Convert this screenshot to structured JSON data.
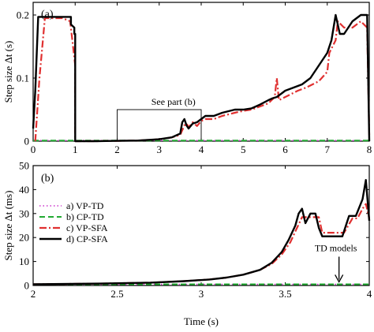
{
  "chart_data": [
    {
      "type": "line",
      "panel_label": "(a)",
      "xlabel": "",
      "ylabel": "Step size  Δt (s)",
      "xlim": [
        0,
        8
      ],
      "ylim": [
        0,
        0.22
      ],
      "xticks": [
        0,
        1,
        2,
        3,
        4,
        5,
        6,
        7,
        8
      ],
      "yticks": [
        0,
        0.1,
        0.2
      ],
      "grid": false,
      "annotation": {
        "text": "See part (b)",
        "box_x": [
          2,
          4
        ],
        "box_y": [
          0,
          0.05
        ]
      },
      "series": [
        {
          "name": "a) VP-TD",
          "color": "#cc33cc",
          "style": "dotted",
          "x": [
            0,
            8
          ],
          "y": [
            0.001,
            0.001
          ]
        },
        {
          "name": "b) CP-TD",
          "color": "#22aa33",
          "style": "dashed",
          "x": [
            0,
            8
          ],
          "y": [
            0.001,
            0.001
          ]
        },
        {
          "name": "c) VP-SFA",
          "color": "#e03030",
          "style": "dashdot",
          "x": [
            0.05,
            0.15,
            0.28,
            0.5,
            0.7,
            0.88,
            0.95,
            1.0,
            1.0,
            1.5,
            2.0,
            2.5,
            3.0,
            3.3,
            3.5,
            3.6,
            3.65,
            3.7,
            3.8,
            3.9,
            4.0,
            4.1,
            4.3,
            4.5,
            4.8,
            5.0,
            5.2,
            5.4,
            5.6,
            5.75,
            5.8,
            5.85,
            6.0,
            6.3,
            6.5,
            6.8,
            7.0,
            7.05,
            7.2,
            7.25,
            7.4,
            7.6,
            7.8,
            7.95,
            8.0
          ],
          "y": [
            0.0,
            0.1,
            0.195,
            0.195,
            0.195,
            0.19,
            0.15,
            0.12,
            0.0,
            0.0,
            0.0005,
            0.001,
            0.003,
            0.006,
            0.01,
            0.025,
            0.028,
            0.022,
            0.03,
            0.024,
            0.032,
            0.035,
            0.035,
            0.04,
            0.045,
            0.048,
            0.05,
            0.055,
            0.06,
            0.07,
            0.1,
            0.065,
            0.07,
            0.08,
            0.085,
            0.095,
            0.11,
            0.14,
            0.16,
            0.19,
            0.18,
            0.18,
            0.19,
            0.18,
            0.01
          ]
        },
        {
          "name": "d) CP-SFA",
          "color": "#000000",
          "style": "solid",
          "x": [
            0.0,
            0.05,
            0.12,
            0.5,
            0.9,
            0.9,
            0.98,
            0.98,
            1.0,
            1.0,
            1.5,
            2.0,
            2.5,
            3.0,
            3.3,
            3.5,
            3.55,
            3.6,
            3.65,
            3.7,
            3.8,
            3.9,
            4.0,
            4.1,
            4.2,
            4.3,
            4.5,
            4.8,
            5.0,
            5.2,
            5.4,
            5.6,
            5.7,
            5.8,
            5.9,
            6.0,
            6.2,
            6.4,
            6.6,
            6.8,
            7.0,
            7.1,
            7.2,
            7.3,
            7.4,
            7.6,
            7.8,
            7.95,
            8.0
          ],
          "y": [
            0.02,
            0.08,
            0.197,
            0.197,
            0.197,
            0.185,
            0.18,
            0.17,
            0.17,
            0.0,
            0.0,
            0.0005,
            0.001,
            0.003,
            0.006,
            0.012,
            0.03,
            0.035,
            0.025,
            0.02,
            0.028,
            0.03,
            0.035,
            0.04,
            0.04,
            0.04,
            0.045,
            0.05,
            0.05,
            0.052,
            0.058,
            0.065,
            0.068,
            0.07,
            0.075,
            0.08,
            0.085,
            0.09,
            0.1,
            0.12,
            0.14,
            0.16,
            0.2,
            0.17,
            0.17,
            0.19,
            0.2,
            0.2,
            0.0
          ]
        }
      ]
    },
    {
      "type": "line",
      "panel_label": "(b)",
      "xlabel": "Time (s)",
      "ylabel": "Step size  Δt (ms)",
      "xlim": [
        2,
        4
      ],
      "ylim": [
        0,
        50
      ],
      "xticks": [
        2,
        2.5,
        3,
        3.5,
        4
      ],
      "yticks": [
        0,
        10,
        20,
        30,
        40,
        50
      ],
      "grid": false,
      "legend": "upper-left",
      "annotation": {
        "text": "TD models",
        "x": 3.82,
        "y": 0.5
      },
      "series": [
        {
          "name": "a) VP-TD",
          "color": "#cc33cc",
          "style": "dotted",
          "x": [
            2,
            4
          ],
          "y": [
            0.5,
            0.5
          ]
        },
        {
          "name": "b) CP-TD",
          "color": "#22aa33",
          "style": "dashed",
          "x": [
            2,
            4
          ],
          "y": [
            0.5,
            0.5
          ]
        },
        {
          "name": "c) VP-SFA",
          "color": "#e03030",
          "style": "dashdot",
          "x": [
            2.0,
            2.4,
            2.7,
            2.9,
            3.05,
            3.15,
            3.25,
            3.35,
            3.42,
            3.48,
            3.53,
            3.57,
            3.6,
            3.62,
            3.66,
            3.7,
            3.72,
            3.76,
            3.8,
            3.85,
            3.9,
            3.93,
            3.96,
            3.98,
            4.0
          ],
          "y": [
            0.5,
            0.8,
            1.2,
            1.8,
            2.5,
            3.3,
            4.5,
            6.5,
            9.0,
            13.0,
            18.0,
            24.0,
            28.5,
            28.5,
            28.5,
            28.5,
            22.0,
            22.0,
            22.0,
            22.0,
            28.0,
            28.0,
            32.0,
            34.0,
            28.0
          ]
        },
        {
          "name": "d) CP-SFA",
          "color": "#000000",
          "style": "solid",
          "x": [
            2.0,
            2.4,
            2.7,
            2.9,
            3.05,
            3.15,
            3.25,
            3.35,
            3.42,
            3.48,
            3.52,
            3.56,
            3.58,
            3.6,
            3.62,
            3.65,
            3.68,
            3.7,
            3.72,
            3.76,
            3.8,
            3.84,
            3.88,
            3.92,
            3.96,
            3.98,
            4.0
          ],
          "y": [
            0.5,
            0.8,
            1.2,
            1.8,
            2.5,
            3.3,
            4.5,
            6.5,
            9.5,
            14.0,
            19.0,
            25.0,
            30.0,
            32.0,
            26.0,
            30.0,
            30.0,
            24.0,
            20.5,
            20.5,
            20.5,
            20.5,
            29.0,
            29.0,
            36.0,
            44.0,
            27.0
          ]
        }
      ]
    }
  ]
}
